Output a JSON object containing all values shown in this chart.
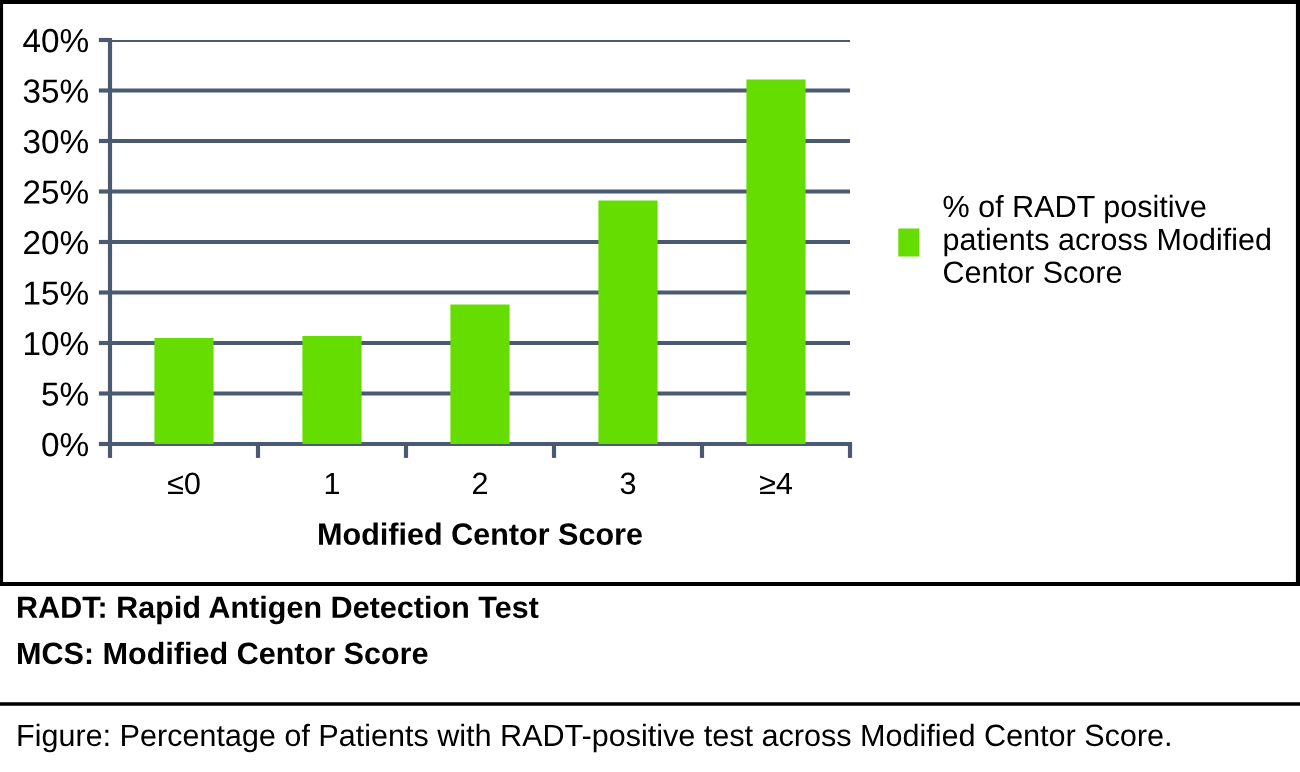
{
  "chart_data": {
    "type": "bar",
    "xlabel": "Modified Centor Score",
    "categories": [
      "≤0",
      "1",
      "2",
      "3",
      "≥4"
    ],
    "series": [
      {
        "name": "% of RADT positive patients across Modified Centor Score",
        "color": "#66dd00",
        "values": [
          10.5,
          10.7,
          13.8,
          24.1,
          36.1
        ]
      }
    ],
    "ylim": [
      0,
      40
    ],
    "yticks": [
      {
        "value": 0,
        "label": "0%"
      },
      {
        "value": 5,
        "label": "5%"
      },
      {
        "value": 10,
        "label": "10%"
      },
      {
        "value": 15,
        "label": "15%"
      },
      {
        "value": 20,
        "label": "20%"
      },
      {
        "value": 25,
        "label": "25%"
      },
      {
        "value": 30,
        "label": "30%"
      },
      {
        "value": 35,
        "label": "35%"
      },
      {
        "value": 40,
        "label": "40%"
      }
    ],
    "grid": "y",
    "legend": "right",
    "annotations": [
      "RADT: Rapid Antigen Detection Test",
      "MCS: Modified Centor Score",
      "Figure: Percentage of Patients with RADT-positive test across Modified Centor Score."
    ]
  }
}
